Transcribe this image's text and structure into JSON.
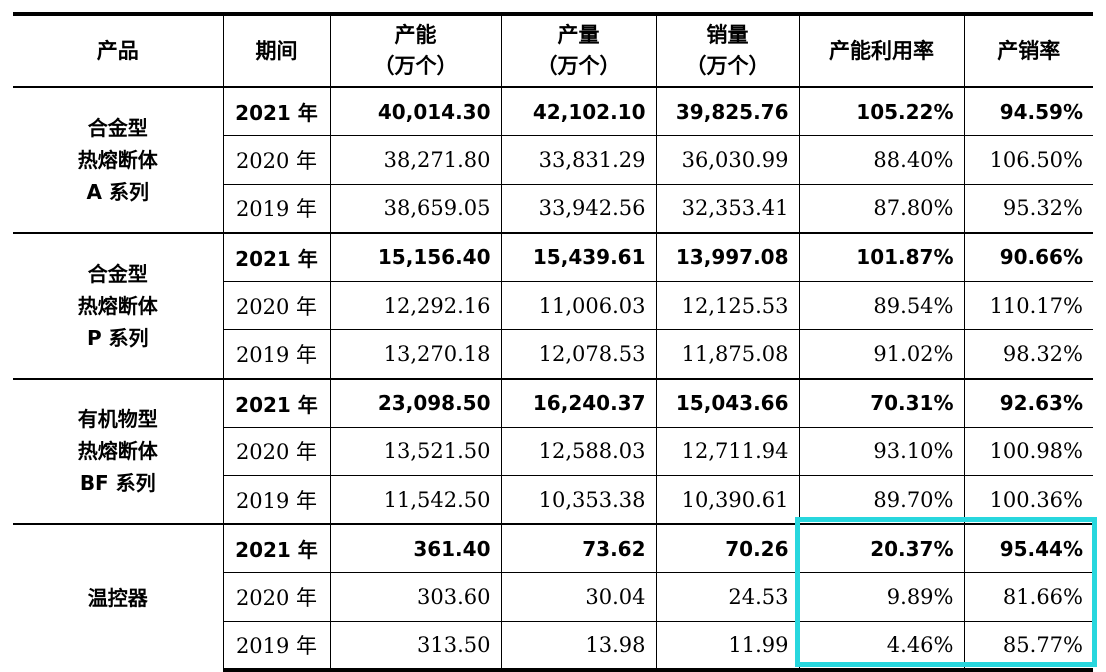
{
  "headers": [
    {
      "line1": "产品",
      "line2": ""
    },
    {
      "line1": "期间",
      "line2": ""
    },
    {
      "line1": "产能",
      "line2": "（万个）"
    },
    {
      "line1": "产量",
      "line2": "（万个）"
    },
    {
      "line1": "销量",
      "line2": "（万个）"
    },
    {
      "line1": "产能利用率",
      "line2": ""
    },
    {
      "line1": "产销率",
      "line2": ""
    }
  ],
  "groups": [
    {
      "product": [
        "合金型",
        "热熔断体",
        "A 系列"
      ],
      "rows": [
        [
          "2021 年",
          "40,014.30",
          "42,102.10",
          "39,825.76",
          "105.22%",
          "94.59%"
        ],
        [
          "2020 年",
          "38,271.80",
          "33,831.29",
          "36,030.99",
          "88.40%",
          "106.50%"
        ],
        [
          "2019 年",
          "38,659.05",
          "33,942.56",
          "32,353.41",
          "87.80%",
          "95.32%"
        ]
      ]
    },
    {
      "product": [
        "合金型",
        "热熔断体",
        "P 系列"
      ],
      "rows": [
        [
          "2021 年",
          "15,156.40",
          "15,439.61",
          "13,997.08",
          "101.87%",
          "90.66%"
        ],
        [
          "2020 年",
          "12,292.16",
          "11,006.03",
          "12,125.53",
          "89.54%",
          "110.17%"
        ],
        [
          "2019 年",
          "13,270.18",
          "12,078.53",
          "11,875.08",
          "91.02%",
          "98.32%"
        ]
      ]
    },
    {
      "product": [
        "有机物型",
        "热熔断体",
        "BF 系列"
      ],
      "rows": [
        [
          "2021 年",
          "23,098.50",
          "16,240.37",
          "15,043.66",
          "70.31%",
          "92.63%"
        ],
        [
          "2020 年",
          "13,521.50",
          "12,588.03",
          "12,711.94",
          "93.10%",
          "100.98%"
        ],
        [
          "2019 年",
          "11,542.50",
          "10,353.38",
          "10,390.61",
          "89.70%",
          "100.36%"
        ]
      ]
    },
    {
      "product": [
        "温控器"
      ],
      "rows": [
        [
          "2021 年",
          "361.40",
          "73.62",
          "70.26",
          "20.37%",
          "95.44%"
        ],
        [
          "2020 年",
          "303.60",
          "30.04",
          "24.53",
          "9.89%",
          "81.66%"
        ],
        [
          "2019 年",
          "313.50",
          "13.98",
          "11.99",
          "4.46%",
          "85.77%"
        ]
      ]
    }
  ],
  "highlight_color": "#28d7de"
}
